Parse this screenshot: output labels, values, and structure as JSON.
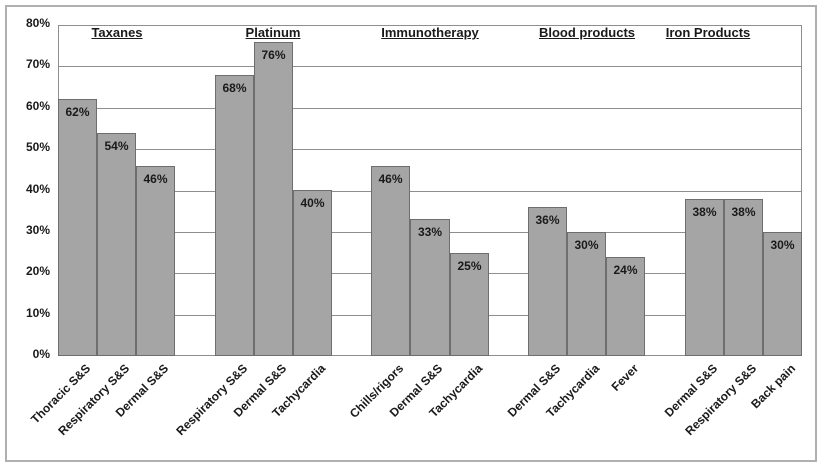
{
  "chart_data": {
    "type": "bar",
    "title": "",
    "xlabel": "",
    "ylabel": "",
    "ylim": [
      0,
      80
    ],
    "ytick_values": [
      0,
      10,
      20,
      30,
      40,
      50,
      60,
      70,
      80
    ],
    "ytick_labels": [
      "0%",
      "10%",
      "20%",
      "30%",
      "40%",
      "50%",
      "60%",
      "70%",
      "80%"
    ],
    "grid": true,
    "legend": false,
    "bar_fill": "#a5a5a5",
    "bar_border": "#6e6e6e",
    "gridline_color": "#8e8e8e",
    "plot_border_color": "#8e8e8e",
    "text_color": "#1a1a1a",
    "frame_border_color": "#b0b0b0",
    "groups": [
      {
        "label": "Taxanes",
        "bars": [
          {
            "category": "Thoracic S&S",
            "value": 62,
            "value_label": "62%"
          },
          {
            "category": "Respiratory S&S",
            "value": 54,
            "value_label": "54%"
          },
          {
            "category": "Dermal S&S",
            "value": 46,
            "value_label": "46%"
          }
        ]
      },
      {
        "label": "Platinum",
        "bars": [
          {
            "category": "Respiratory S&S",
            "value": 68,
            "value_label": "68%"
          },
          {
            "category": "Dermal S&S",
            "value": 76,
            "value_label": "76%"
          },
          {
            "category": "Tachycardia",
            "value": 40,
            "value_label": "40%"
          }
        ]
      },
      {
        "label": "Immunotherapy",
        "bars": [
          {
            "category": "Chills/rigors",
            "value": 46,
            "value_label": "46%"
          },
          {
            "category": "Dermal S&S",
            "value": 33,
            "value_label": "33%"
          },
          {
            "category": "Tachycardia",
            "value": 25,
            "value_label": "25%"
          }
        ]
      },
      {
        "label": "Blood products",
        "bars": [
          {
            "category": "Dermal S&S",
            "value": 36,
            "value_label": "36%"
          },
          {
            "category": "Tachycardia",
            "value": 30,
            "value_label": "30%"
          },
          {
            "category": "Fever",
            "value": 24,
            "value_label": "24%"
          }
        ]
      },
      {
        "label": "Iron Products",
        "bars": [
          {
            "category": "Dermal S&S",
            "value": 38,
            "value_label": "38%"
          },
          {
            "category": "Respiratory S&S",
            "value": 38,
            "value_label": "38%"
          },
          {
            "category": "Back pain",
            "value": 30,
            "value_label": "30%"
          }
        ]
      }
    ]
  }
}
